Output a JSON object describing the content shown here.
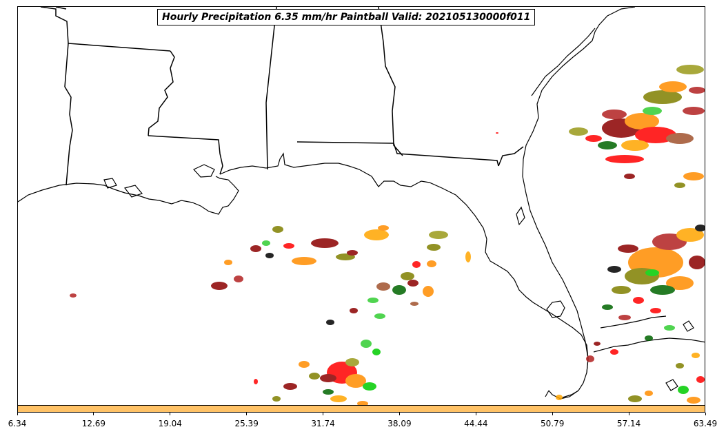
{
  "title": "Hourly Precipitation 6.35 mm/hr Paintball Valid: 202105130000f011",
  "colorbar": {
    "color": "#ffc266",
    "tick_labels": [
      "6.34",
      "12.69",
      "19.04",
      "25.39",
      "31.74",
      "38.09",
      "44.44",
      "50.79",
      "57.14",
      "63.49"
    ]
  },
  "map": {
    "region": "Southeastern United States and Gulf of Mexico",
    "linework_color": "#000000",
    "paintball_colors": [
      "#000000",
      "#8b0000",
      "#b22222",
      "#ff0000",
      "#ff8c00",
      "#ffa500",
      "#808000",
      "#9a9a1a",
      "#006400",
      "#00cc00",
      "#32cd32",
      "#a0522d"
    ]
  }
}
